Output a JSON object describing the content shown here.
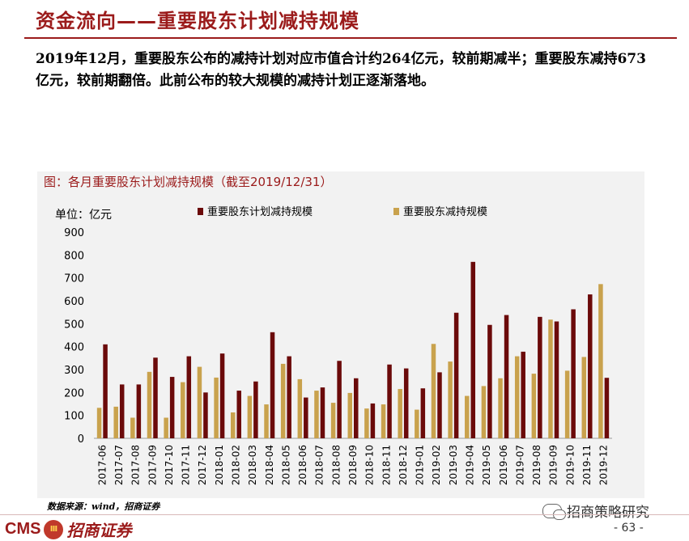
{
  "page": {
    "title": "资金流向——重要股东计划减持规模",
    "summary": "2019年12月，重要股东公布的减持计划对应市值合计约264亿元，较前期减半；重要股东减持673亿元，较前期翻倍。此前公布的较大规模的减持计划正逐渐落地。",
    "source": "数据来源：wind，招商证券",
    "page_number": "- 63 -",
    "watermark": "招商策略研究",
    "logo": {
      "cms": "CMS",
      "badge": "Ⅲ",
      "name": "招商证券"
    }
  },
  "colors": {
    "accent": "#9B1B1B",
    "planned": "#6B0A0A",
    "actual": "#C9A24D",
    "panel": "#f2f2f2"
  },
  "chart_data": {
    "type": "bar",
    "title": "图：各月重要股东计划减持规模（截至2019/12/31）",
    "unit_label": "单位：亿元",
    "ylim": [
      0,
      900
    ],
    "yticks": [
      0,
      100,
      200,
      300,
      400,
      500,
      600,
      700,
      800,
      900
    ],
    "legend_position": "top",
    "categories": [
      "2017-06",
      "2017-07",
      "2017-08",
      "2017-09",
      "2017-10",
      "2017-11",
      "2017-12",
      "2018-01",
      "2018-02",
      "2018-03",
      "2018-04",
      "2018-05",
      "2018-06",
      "2018-07",
      "2018-08",
      "2018-09",
      "2018-10",
      "2018-11",
      "2018-12",
      "2019-01",
      "2019-02",
      "2019-03",
      "2019-04",
      "2019-05",
      "2019-06",
      "2019-07",
      "2019-08",
      "2019-09",
      "2019-10",
      "2019-11",
      "2019-12"
    ],
    "series": [
      {
        "name": "重要股东减持规模",
        "color": "#C9A24D",
        "values": [
          133,
          138,
          90,
          290,
          90,
          245,
          312,
          265,
          113,
          185,
          148,
          325,
          258,
          208,
          155,
          198,
          130,
          148,
          215,
          125,
          412,
          335,
          185,
          228,
          262,
          358,
          282,
          518,
          295,
          355,
          673
        ]
      },
      {
        "name": "重要股东计划减持规模",
        "color": "#6B0A0A",
        "values": [
          410,
          235,
          235,
          352,
          268,
          358,
          200,
          370,
          208,
          248,
          463,
          358,
          178,
          222,
          338,
          262,
          152,
          322,
          305,
          218,
          288,
          548,
          770,
          495,
          538,
          378,
          530,
          510,
          563,
          628,
          264
        ]
      }
    ],
    "legend": [
      {
        "name": "重要股东计划减持规模",
        "color": "#6B0A0A"
      },
      {
        "name": "重要股东减持规模",
        "color": "#C9A24D"
      }
    ]
  }
}
